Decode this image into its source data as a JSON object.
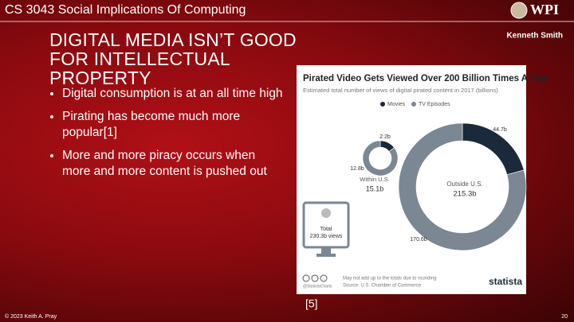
{
  "header": {
    "course": "CS 3043 Social Implications Of Computing",
    "logo": "WPI",
    "author": "Kenneth Smith"
  },
  "title": "DIGITAL MEDIA ISN’T GOOD FOR INTELLECTUAL PROPERTY",
  "bullets": [
    "Digital consumption is at an all time high",
    "Pirating has become much more popular[1]",
    "More and more piracy occurs when more and more content is pushed out"
  ],
  "figure": {
    "title": "Pirated Video Gets Viewed Over 200 Billion Times A Year",
    "subtitle": "Estimated total number of views of digital pirated content in 2017 (billions)",
    "legend": [
      {
        "name": "Movies",
        "color": "#1b2a3a"
      },
      {
        "name": "TV Episodes",
        "color": "#7b8793"
      }
    ],
    "donuts": [
      {
        "name": "Within U.S.",
        "total": "15.1b",
        "segments": [
          {
            "value": 2.2,
            "label": "2.2b"
          },
          {
            "value": 12.8,
            "label": "12.8b"
          }
        ]
      },
      {
        "name": "Outside U.S.",
        "total": "215.3b",
        "segments": [
          {
            "value": 44.7,
            "label": "44.7b"
          },
          {
            "value": 170.6,
            "label": "170.6b"
          }
        ]
      }
    ],
    "total_label": "Total",
    "total_value": "230.3b views",
    "note": "May not add up to the totals due to rounding",
    "source": "Source: U.S. Chamber of Commerce",
    "handle": "@StatistaCharts",
    "brand": "statista"
  },
  "citation": "[5]",
  "footer": {
    "copyright": "© 2023 Keith A. Pray",
    "page": "20"
  }
}
